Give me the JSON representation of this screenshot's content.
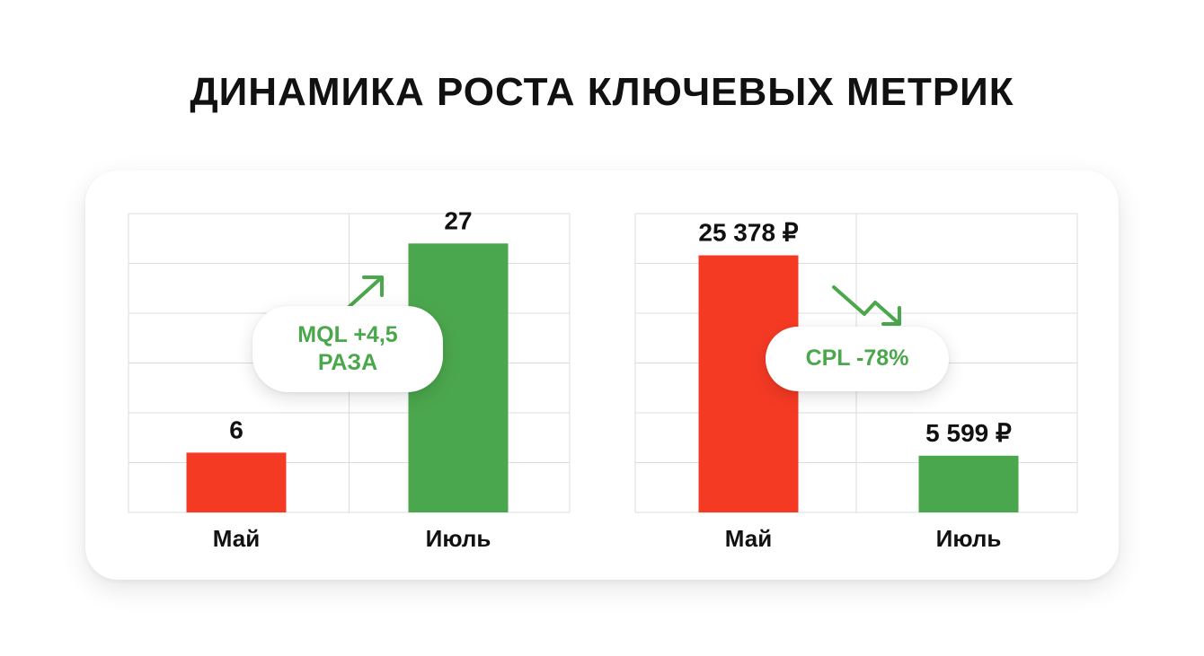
{
  "title": "ДИНАМИКА РОСТА КЛЮЧЕВЫХ МЕТРИК",
  "colors": {
    "red": "#f53a24",
    "green": "#4ba74d",
    "grid": "#dcdcdc",
    "label_green": "#4aa74c"
  },
  "chart_data": [
    {
      "type": "bar",
      "categories": [
        "Май",
        "Июль"
      ],
      "values": [
        6,
        27
      ],
      "value_labels": [
        "6",
        "27"
      ],
      "bar_colors": [
        "#f53a24",
        "#4ba74d"
      ],
      "ylim": [
        0,
        30
      ],
      "grid": true,
      "annotation": {
        "lines": [
          "MQL +4,5",
          "РАЗА"
        ],
        "arrow": "up"
      }
    },
    {
      "type": "bar",
      "categories": [
        "Май",
        "Июль"
      ],
      "values": [
        25378,
        5599
      ],
      "value_labels": [
        "25 378 ₽",
        "5 599 ₽"
      ],
      "bar_colors": [
        "#f53a24",
        "#4ba74d"
      ],
      "ylim": [
        0,
        29500
      ],
      "grid": true,
      "annotation": {
        "lines": [
          "CPL -78%"
        ],
        "arrow": "down"
      }
    }
  ]
}
